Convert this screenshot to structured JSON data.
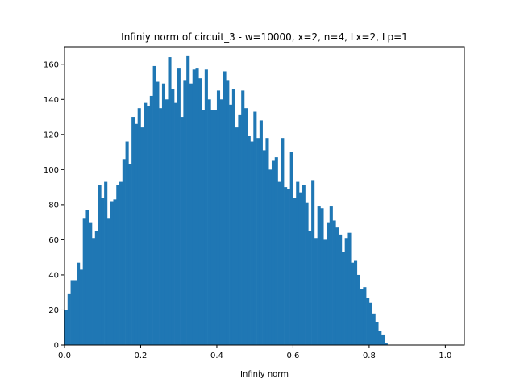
{
  "chart_data": {
    "type": "bar",
    "title": "Infiniy norm of circuit_3 - w=10000, x=2, n=4, Lx=2, Lp=1",
    "xlabel": "Infiniy norm",
    "ylabel": "",
    "xlim": [
      0.0,
      1.05
    ],
    "ylim": [
      0,
      170
    ],
    "xticks": [
      0.0,
      0.2,
      0.4,
      0.6,
      0.8,
      1.0
    ],
    "xtick_labels": [
      "0.0",
      "0.2",
      "0.4",
      "0.6",
      "0.8",
      "1.0"
    ],
    "yticks": [
      0,
      20,
      40,
      60,
      80,
      100,
      120,
      140,
      160
    ],
    "ytick_labels": [
      "0",
      "20",
      "40",
      "60",
      "80",
      "100",
      "120",
      "140",
      "160"
    ],
    "bar_color": "#1f77b4",
    "grid": false,
    "legend": "none",
    "bin_start": 0.0,
    "bin_width": 0.008,
    "values": [
      20,
      29,
      37,
      37,
      47,
      43,
      72,
      77,
      70,
      61,
      65,
      91,
      84,
      93,
      72,
      82,
      83,
      91,
      93,
      106,
      116,
      103,
      130,
      126,
      135,
      124,
      138,
      136,
      142,
      159,
      150,
      135,
      149,
      140,
      164,
      146,
      138,
      158,
      130,
      151,
      165,
      149,
      157,
      158,
      152,
      134,
      157,
      140,
      134,
      134,
      145,
      140,
      156,
      151,
      137,
      146,
      124,
      131,
      145,
      135,
      119,
      116,
      133,
      118,
      128,
      111,
      118,
      100,
      105,
      107,
      93,
      118,
      90,
      89,
      110,
      84,
      93,
      87,
      91,
      81,
      65,
      94,
      61,
      79,
      78,
      60,
      70,
      79,
      71,
      67,
      63,
      53,
      61,
      64,
      47,
      48,
      40,
      32,
      33,
      27,
      24,
      18,
      13,
      8,
      6,
      1
    ]
  }
}
